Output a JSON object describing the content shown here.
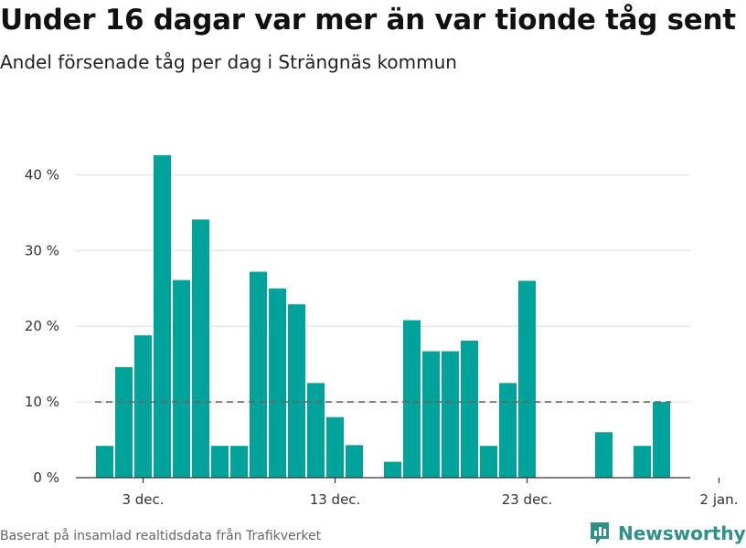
{
  "header": {
    "title": "Under 16 dagar var mer än var tionde tåg sent",
    "subtitle": "Andel försenade tåg per dag i Strängnäs kommun"
  },
  "footer": {
    "source": "Baserat på insamlad realtidsdata från Trafikverket",
    "brand": "Newsworthy"
  },
  "colors": {
    "bar": "#00a39a",
    "reference_line": "#666666",
    "grid": "#dddddd",
    "brand": "#2f8f89"
  },
  "chart_data": {
    "type": "bar",
    "title": "Under 16 dagar var mer än var tionde tåg sent",
    "subtitle": "Andel försenade tåg per dag i Strängnäs kommun",
    "xlabel": "",
    "ylabel": "",
    "x_start": "2023-11-30",
    "x_tick_labels": [
      "3 dec.",
      "13 dec.",
      "23 dec.",
      "2 jan."
    ],
    "x_tick_days": [
      3,
      13,
      23,
      33
    ],
    "y_ticks": [
      0,
      10,
      20,
      30,
      40
    ],
    "y_tick_labels": [
      "0 %",
      "10 %",
      "20 %",
      "30 %",
      "40 %"
    ],
    "ylim": [
      0,
      45
    ],
    "xlim_days": [
      -0.5,
      31.5
    ],
    "reference_line": 10,
    "grid": true,
    "legend": "none",
    "days": [
      1,
      2,
      3,
      4,
      5,
      6,
      7,
      8,
      9,
      10,
      11,
      12,
      13,
      14,
      15,
      16,
      17,
      18,
      19,
      20,
      21,
      22,
      23,
      24,
      25,
      26,
      27,
      28,
      29,
      30,
      31,
      32
    ],
    "values": [
      4.2,
      14.6,
      18.8,
      42.6,
      26.1,
      34.1,
      4.2,
      4.2,
      27.2,
      25.0,
      22.9,
      12.5,
      8.0,
      4.3,
      0,
      2.1,
      20.8,
      16.7,
      16.7,
      18.1,
      4.2,
      12.5,
      26.0,
      0,
      0,
      0,
      6.0,
      0,
      4.2,
      10.0,
      0,
      0
    ]
  }
}
